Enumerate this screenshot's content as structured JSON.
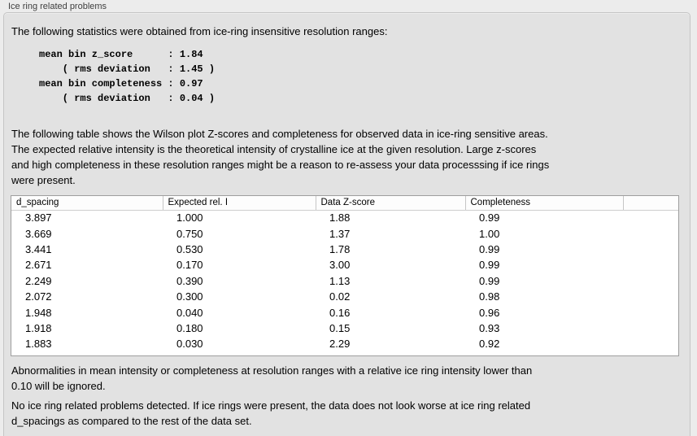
{
  "panel": {
    "title": "Ice ring related problems"
  },
  "intro": "The following statistics were obtained from ice-ring insensitive resolution ranges:",
  "stats_block": "mean bin z_score      : 1.84\n    ( rms deviation   : 1.45 )\nmean bin completeness : 0.97\n    ( rms deviation   : 0.04 )",
  "table_description": "The following table shows the Wilson plot Z-scores and completeness for observed data in ice-ring sensitive areas.\nThe expected relative intensity is the theoretical intensity of crystalline ice at the given resolution. Large z-scores\nand high completeness in these resolution ranges might be a reason to re-assess your data processsing if ice rings\nwere present.",
  "table": {
    "columns": [
      "d_spacing",
      "Expected rel. I",
      "Data Z-score",
      "Completeness"
    ],
    "rows": [
      [
        "3.897",
        "1.000",
        "1.88",
        "0.99"
      ],
      [
        "3.669",
        "0.750",
        "1.37",
        "1.00"
      ],
      [
        "3.441",
        "0.530",
        "1.78",
        "0.99"
      ],
      [
        "2.671",
        "0.170",
        "3.00",
        "0.99"
      ],
      [
        "2.249",
        "0.390",
        "1.13",
        "0.99"
      ],
      [
        "2.072",
        "0.300",
        "0.02",
        "0.98"
      ],
      [
        "1.948",
        "0.040",
        "0.16",
        "0.96"
      ],
      [
        "1.918",
        "0.180",
        "0.15",
        "0.93"
      ],
      [
        "1.883",
        "0.030",
        "2.29",
        "0.92"
      ]
    ]
  },
  "note_ignore": "Abnormalities in mean intensity or completeness at resolution ranges with a relative ice ring intensity lower than\n0.10 will be ignored.",
  "conclusion": "No ice ring related problems detected. If ice rings were present, the data does not look worse at ice ring related\nd_spacings as compared to the rest of the data set."
}
